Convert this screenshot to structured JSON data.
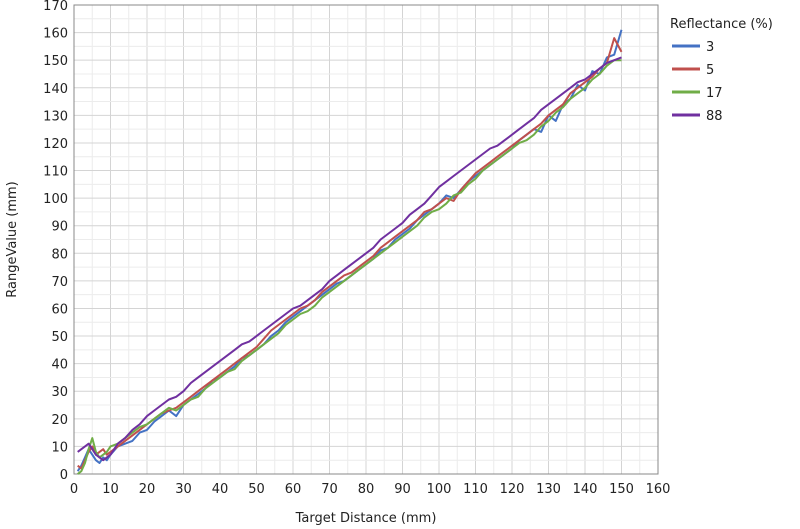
{
  "chart_data": {
    "type": "line",
    "xlabel": "Target Distance (mm)",
    "ylabel": "RangeValue (mm)",
    "xlim": [
      0,
      160
    ],
    "ylim": [
      0,
      170
    ],
    "xticks": [
      0,
      10,
      20,
      30,
      40,
      50,
      60,
      70,
      80,
      90,
      100,
      110,
      120,
      130,
      140,
      150,
      160
    ],
    "yticks": [
      0,
      10,
      20,
      30,
      40,
      50,
      60,
      70,
      80,
      90,
      100,
      110,
      120,
      130,
      140,
      150,
      160,
      170
    ],
    "grid": true,
    "legend": {
      "title": "Reflectance (%)",
      "placement": "right"
    },
    "series": [
      {
        "name": "3",
        "color": "#4472c4",
        "x": [
          1,
          2,
          3,
          4,
          5,
          6,
          7,
          8,
          9,
          10,
          12,
          14,
          16,
          18,
          20,
          22,
          24,
          26,
          28,
          30,
          32,
          34,
          36,
          38,
          40,
          42,
          44,
          46,
          48,
          50,
          52,
          54,
          56,
          58,
          60,
          62,
          64,
          66,
          68,
          70,
          72,
          74,
          76,
          78,
          80,
          82,
          84,
          86,
          88,
          90,
          92,
          94,
          96,
          98,
          100,
          102,
          104,
          106,
          108,
          110,
          112,
          114,
          116,
          118,
          120,
          122,
          124,
          126,
          128,
          130,
          132,
          134,
          136,
          138,
          140,
          142,
          144,
          146,
          148,
          150
        ],
        "y": [
          1,
          3,
          6,
          9,
          7,
          5,
          4,
          6,
          5,
          7,
          10,
          11,
          12,
          15,
          16,
          19,
          21,
          23,
          21,
          25,
          27,
          29,
          31,
          34,
          35,
          37,
          39,
          42,
          43,
          45,
          47,
          50,
          52,
          55,
          57,
          59,
          61,
          63,
          65,
          67,
          69,
          70,
          72,
          74,
          76,
          78,
          81,
          82,
          85,
          87,
          89,
          92,
          94,
          96,
          98,
          101,
          100,
          103,
          106,
          108,
          110,
          112,
          114,
          116,
          118,
          121,
          123,
          125,
          124,
          130,
          128,
          134,
          136,
          141,
          139,
          146,
          145,
          151,
          152,
          161
        ]
      },
      {
        "name": "5",
        "color": "#c0504d",
        "x": [
          1,
          2,
          3,
          4,
          5,
          6,
          7,
          8,
          9,
          10,
          12,
          14,
          16,
          18,
          20,
          22,
          24,
          26,
          28,
          30,
          32,
          34,
          36,
          38,
          40,
          42,
          44,
          46,
          48,
          50,
          52,
          54,
          56,
          58,
          60,
          62,
          64,
          66,
          68,
          70,
          72,
          74,
          76,
          78,
          80,
          82,
          84,
          86,
          88,
          90,
          92,
          94,
          96,
          98,
          100,
          102,
          104,
          106,
          108,
          110,
          112,
          114,
          116,
          118,
          120,
          122,
          124,
          126,
          128,
          130,
          132,
          134,
          136,
          138,
          140,
          142,
          144,
          146,
          148,
          150
        ],
        "y": [
          3,
          2,
          5,
          8,
          10,
          7,
          8,
          9,
          7,
          8,
          10,
          12,
          14,
          16,
          18,
          20,
          22,
          23,
          24,
          26,
          28,
          30,
          32,
          34,
          36,
          38,
          40,
          42,
          44,
          46,
          49,
          52,
          54,
          56,
          58,
          60,
          61,
          63,
          66,
          68,
          70,
          72,
          73,
          75,
          77,
          79,
          82,
          84,
          86,
          88,
          90,
          92,
          95,
          96,
          98,
          100,
          99,
          103,
          106,
          109,
          111,
          113,
          115,
          117,
          119,
          121,
          123,
          125,
          127,
          130,
          132,
          134,
          138,
          140,
          142,
          144,
          147,
          149,
          158,
          153
        ]
      },
      {
        "name": "17",
        "color": "#70ad47",
        "x": [
          1,
          2,
          3,
          4,
          5,
          6,
          7,
          8,
          9,
          10,
          12,
          14,
          16,
          18,
          20,
          22,
          24,
          26,
          28,
          30,
          32,
          34,
          36,
          38,
          40,
          42,
          44,
          46,
          48,
          50,
          52,
          54,
          56,
          58,
          60,
          62,
          64,
          66,
          68,
          70,
          72,
          74,
          76,
          78,
          80,
          82,
          84,
          86,
          88,
          90,
          92,
          94,
          96,
          98,
          100,
          102,
          104,
          106,
          108,
          110,
          112,
          114,
          116,
          118,
          120,
          122,
          124,
          126,
          128,
          130,
          132,
          134,
          136,
          138,
          140,
          142,
          144,
          146,
          148,
          150
        ],
        "y": [
          0,
          1,
          4,
          9,
          13,
          8,
          6,
          7,
          8,
          10,
          11,
          13,
          15,
          17,
          18,
          20,
          22,
          24,
          23,
          25,
          27,
          28,
          31,
          33,
          35,
          37,
          38,
          41,
          43,
          45,
          47,
          49,
          51,
          54,
          56,
          58,
          59,
          61,
          64,
          66,
          68,
          70,
          72,
          74,
          76,
          78,
          80,
          82,
          84,
          86,
          88,
          90,
          93,
          95,
          96,
          98,
          101,
          102,
          105,
          107,
          110,
          112,
          114,
          116,
          118,
          120,
          121,
          123,
          126,
          128,
          131,
          133,
          136,
          138,
          140,
          143,
          145,
          148,
          150,
          150
        ]
      },
      {
        "name": "88",
        "color": "#7030a0",
        "x": [
          1,
          2,
          3,
          4,
          5,
          6,
          7,
          8,
          9,
          10,
          12,
          14,
          16,
          18,
          20,
          22,
          24,
          26,
          28,
          30,
          32,
          34,
          36,
          38,
          40,
          42,
          44,
          46,
          48,
          50,
          52,
          54,
          56,
          58,
          60,
          62,
          64,
          66,
          68,
          70,
          72,
          74,
          76,
          78,
          80,
          82,
          84,
          86,
          88,
          90,
          92,
          94,
          96,
          98,
          100,
          102,
          104,
          106,
          108,
          110,
          112,
          114,
          116,
          118,
          120,
          122,
          124,
          126,
          128,
          130,
          132,
          134,
          136,
          138,
          140,
          142,
          144,
          146,
          148,
          150
        ],
        "y": [
          8,
          9,
          10,
          11,
          9,
          7,
          6,
          5,
          6,
          7,
          11,
          13,
          16,
          18,
          21,
          23,
          25,
          27,
          28,
          30,
          33,
          35,
          37,
          39,
          41,
          43,
          45,
          47,
          48,
          50,
          52,
          54,
          56,
          58,
          60,
          61,
          63,
          65,
          67,
          70,
          72,
          74,
          76,
          78,
          80,
          82,
          85,
          87,
          89,
          91,
          94,
          96,
          98,
          101,
          104,
          106,
          108,
          110,
          112,
          114,
          116,
          118,
          119,
          121,
          123,
          125,
          127,
          129,
          132,
          134,
          136,
          138,
          140,
          142,
          143,
          145,
          147,
          149,
          150,
          151
        ]
      }
    ]
  }
}
